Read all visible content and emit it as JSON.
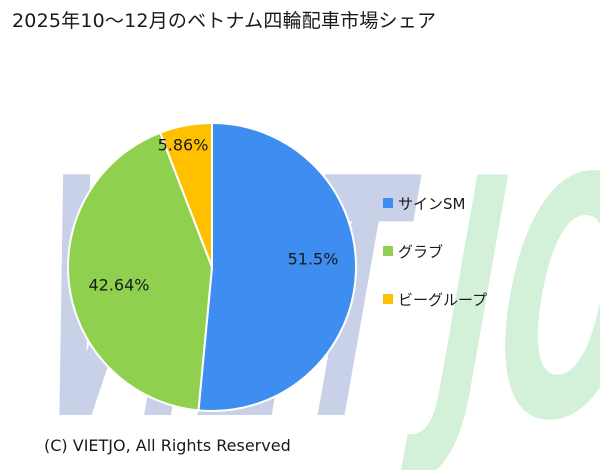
{
  "title": "2025年10～12月のベトナム四輪配車市場シェア",
  "watermark": {
    "text": "VIETJO",
    "colors": {
      "viet": "#c9d1e8",
      "jo": "#d3f1d8"
    }
  },
  "chart_data": {
    "type": "pie",
    "title": "2025年10～12月のベトナム四輪配車市場シェア",
    "slices": [
      {
        "name": "サインSM",
        "value": 51.5,
        "label": "51.5%",
        "color": "#3d8ef0"
      },
      {
        "name": "グラブ",
        "value": 42.64,
        "label": "42.64%",
        "color": "#8fd14f"
      },
      {
        "name": "ビーグループ",
        "value": 5.86,
        "label": "5.86%",
        "color": "#ffc000"
      }
    ],
    "start": "12 o'clock",
    "direction": "clockwise",
    "legend_position": "right"
  },
  "footer": {
    "copyright": "(C) VIETJO, All Rights Reserved"
  }
}
